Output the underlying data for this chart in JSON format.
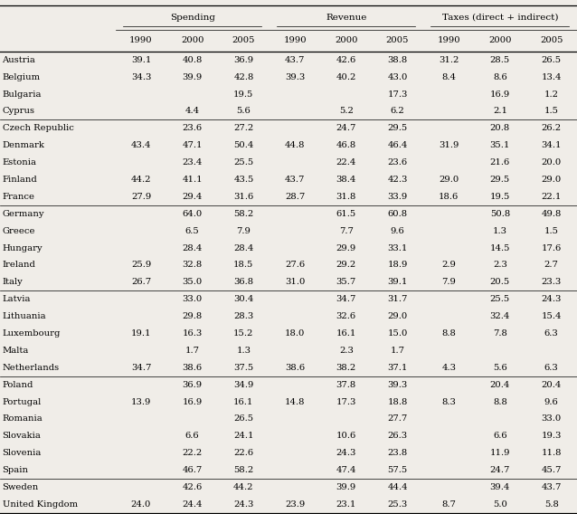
{
  "col_groups": [
    "Spending",
    "Revenue",
    "Taxes (direct + indirect)"
  ],
  "sub_cols": [
    "1990",
    "2000",
    "2005"
  ],
  "countries": [
    "Austria",
    "Belgium",
    "Bulgaria",
    "Cyprus",
    "Czech Republic",
    "Denmark",
    "Estonia",
    "Finland",
    "France",
    "Germany",
    "Greece",
    "Hungary",
    "Ireland",
    "Italy",
    "Latvia",
    "Lithuania",
    "Luxembourg",
    "Malta",
    "Netherlands",
    "Poland",
    "Portugal",
    "Romania",
    "Slovakia",
    "Slovenia",
    "Spain",
    "Sweden",
    "United Kingdom"
  ],
  "data": {
    "Austria": [
      39.1,
      40.8,
      36.9,
      43.7,
      42.6,
      38.8,
      31.2,
      28.5,
      26.5
    ],
    "Belgium": [
      34.3,
      39.9,
      42.8,
      39.3,
      40.2,
      43.0,
      8.4,
      8.6,
      13.4
    ],
    "Bulgaria": [
      null,
      null,
      19.5,
      null,
      null,
      17.3,
      null,
      16.9,
      1.2
    ],
    "Cyprus": [
      null,
      4.4,
      5.6,
      null,
      5.2,
      6.2,
      null,
      2.1,
      1.5
    ],
    "Czech Republic": [
      null,
      23.6,
      27.2,
      null,
      24.7,
      29.5,
      null,
      20.8,
      26.2
    ],
    "Denmark": [
      43.4,
      47.1,
      50.4,
      44.8,
      46.8,
      46.4,
      31.9,
      35.1,
      34.1
    ],
    "Estonia": [
      null,
      23.4,
      25.5,
      null,
      22.4,
      23.6,
      null,
      21.6,
      20.0
    ],
    "Finland": [
      44.2,
      41.1,
      43.5,
      43.7,
      38.4,
      42.3,
      29.0,
      29.5,
      29.0
    ],
    "France": [
      27.9,
      29.4,
      31.6,
      28.7,
      31.8,
      33.9,
      18.6,
      19.5,
      22.1
    ],
    "Germany": [
      null,
      64.0,
      58.2,
      null,
      61.5,
      60.8,
      null,
      50.8,
      49.8
    ],
    "Greece": [
      null,
      6.5,
      7.9,
      null,
      7.7,
      9.6,
      null,
      1.3,
      1.5
    ],
    "Hungary": [
      null,
      28.4,
      28.4,
      null,
      29.9,
      33.1,
      null,
      14.5,
      17.6
    ],
    "Ireland": [
      25.9,
      32.8,
      18.5,
      27.6,
      29.2,
      18.9,
      2.9,
      2.3,
      2.7
    ],
    "Italy": [
      26.7,
      35.0,
      36.8,
      31.0,
      35.7,
      39.1,
      7.9,
      20.5,
      23.3
    ],
    "Latvia": [
      null,
      33.0,
      30.4,
      null,
      34.7,
      31.7,
      null,
      25.5,
      24.3
    ],
    "Lithuania": [
      null,
      29.8,
      28.3,
      null,
      32.6,
      29.0,
      null,
      32.4,
      15.4
    ],
    "Luxembourg": [
      19.1,
      16.3,
      15.2,
      18.0,
      16.1,
      15.0,
      8.8,
      7.8,
      6.3
    ],
    "Malta": [
      null,
      1.7,
      1.3,
      null,
      2.3,
      1.7,
      null,
      null,
      null
    ],
    "Netherlands": [
      34.7,
      38.6,
      37.5,
      38.6,
      38.2,
      37.1,
      4.3,
      5.6,
      6.3
    ],
    "Poland": [
      null,
      36.9,
      34.9,
      null,
      37.8,
      39.3,
      null,
      20.4,
      20.4
    ],
    "Portugal": [
      13.9,
      16.9,
      16.1,
      14.8,
      17.3,
      18.8,
      8.3,
      8.8,
      9.6
    ],
    "Romania": [
      null,
      null,
      26.5,
      null,
      null,
      27.7,
      null,
      null,
      33.0
    ],
    "Slovakia": [
      null,
      6.6,
      24.1,
      null,
      10.6,
      26.3,
      null,
      6.6,
      19.3
    ],
    "Slovenia": [
      null,
      22.2,
      22.6,
      null,
      24.3,
      23.8,
      null,
      11.9,
      11.8
    ],
    "Spain": [
      null,
      46.7,
      58.2,
      null,
      47.4,
      57.5,
      null,
      24.7,
      45.7
    ],
    "Sweden": [
      null,
      42.6,
      44.2,
      null,
      39.9,
      44.4,
      null,
      39.4,
      43.7
    ],
    "United Kingdom": [
      24.0,
      24.4,
      24.3,
      23.9,
      23.1,
      25.3,
      8.7,
      5.0,
      5.8
    ]
  },
  "group_separators_after": [
    4,
    9,
    14,
    19,
    25
  ],
  "bg_color": "#f0ede8",
  "font_size": 7.2,
  "header_font_size": 7.5
}
